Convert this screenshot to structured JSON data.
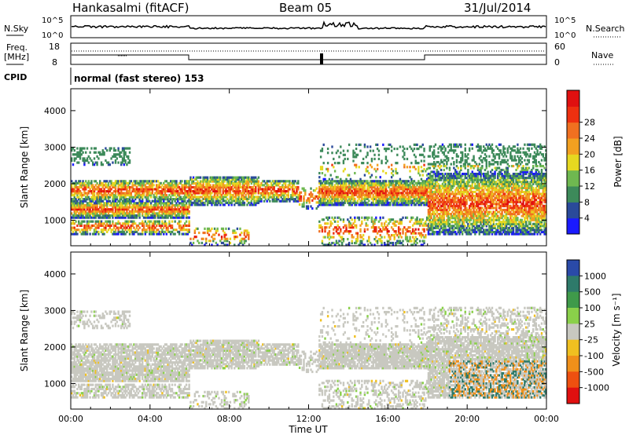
{
  "header": {
    "station": "Hankasalmi (fitACF)",
    "beam": "Beam 05",
    "date": "31/Jul/2014"
  },
  "top_panels": {
    "nsky_label": "N.Sky",
    "nsky_ticks": [
      "10^5",
      "10^0"
    ],
    "nsearch_label": "N.Search",
    "freq_label_line1": "Freq.",
    "freq_label_line2": "[MHz]",
    "freq_ticks": [
      "18",
      "8"
    ],
    "nave_label": "Nave",
    "nave_ticks": [
      "60",
      "0"
    ],
    "cpid_label": "CPID",
    "cpid_value": "normal (fast stereo) 153"
  },
  "chart_data": [
    {
      "type": "heatmap",
      "name": "power",
      "xlabel": "Time UT",
      "ylabel": "Slant Range [km]",
      "xlim": [
        0,
        24
      ],
      "ylim": [
        300,
        4600
      ],
      "xticks": [
        "00:00",
        "04:00",
        "08:00",
        "12:00",
        "16:00",
        "20:00",
        "00:00"
      ],
      "yticks": [
        "1000",
        "2000",
        "3000",
        "4000"
      ],
      "colorbar": {
        "label": "Power [dB]",
        "ticks": [
          "4",
          "8",
          "12",
          "16",
          "20",
          "24",
          "28"
        ],
        "colors": [
          "#1a1aff",
          "#2a4a9a",
          "#3d8a5a",
          "#6fb850",
          "#e6d820",
          "#f2a020",
          "#f07020",
          "#ee3010",
          "#e01010"
        ]
      }
    },
    {
      "type": "heatmap",
      "name": "velocity",
      "xlabel": "Time UT",
      "ylabel": "Slant Range [km]",
      "xlim": [
        0,
        24
      ],
      "ylim": [
        300,
        4600
      ],
      "xticks": [
        "00:00",
        "04:00",
        "08:00",
        "12:00",
        "16:00",
        "20:00",
        "00:00"
      ],
      "yticks": [
        "1000",
        "2000",
        "3000",
        "4000"
      ],
      "colorbar": {
        "label": "Velocity [m s⁻¹]",
        "ticks": [
          "1000",
          "500",
          "100",
          "25",
          "-25",
          "-100",
          "-500",
          "-1000"
        ],
        "colors": [
          "#2a4aa8",
          "#2e7a6a",
          "#3f9a4a",
          "#8ad04a",
          "#c8c8c0",
          "#f0c020",
          "#f0901a",
          "#ee5010",
          "#e01010"
        ]
      }
    }
  ]
}
